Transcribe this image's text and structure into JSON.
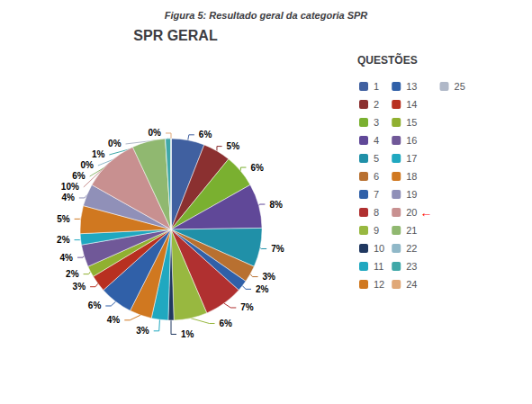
{
  "chart_data": {
    "type": "pie",
    "title": "SPR GERAL",
    "figure_title": "Figura 5: Resultado geral da categoria SPR",
    "legend_title": "QUESTÕES",
    "categories": [
      "1",
      "2",
      "3",
      "4",
      "5",
      "6",
      "7",
      "8",
      "9",
      "10",
      "11",
      "12",
      "13",
      "14",
      "15",
      "16",
      "17",
      "18",
      "19",
      "20",
      "21",
      "22",
      "23",
      "24",
      "25"
    ],
    "values": [
      6,
      5,
      6,
      8,
      7,
      3,
      2,
      7,
      6,
      1,
      3,
      4,
      6,
      3,
      2,
      4,
      2,
      5,
      4,
      10,
      6,
      0,
      1,
      0,
      0
    ],
    "value_labels": [
      "6%",
      "5%",
      "6%",
      "8%",
      "7%",
      "3%",
      "2%",
      "7%",
      "6%",
      "1%",
      "3%",
      "4%",
      "6%",
      "3%",
      "2%",
      "4%",
      "2%",
      "5%",
      "4%",
      "10%",
      "6%",
      "0%",
      "1%",
      "0%",
      "0%"
    ],
    "colors": [
      "#4060A0",
      "#8B3030",
      "#7AB030",
      "#604898",
      "#2090A8",
      "#B87030",
      "#3060A8",
      "#B03030",
      "#98B840",
      "#203860",
      "#20A8C0",
      "#D07820",
      "#3060A8",
      "#B83020",
      "#90B030",
      "#705898",
      "#20A8C0",
      "#D07820",
      "#9090B8",
      "#C89090",
      "#90B870",
      "#90B8C8",
      "#40A8A8",
      "#E0A878",
      "#B0B8C8"
    ],
    "data_labels": true,
    "legend": "right",
    "annotations": [
      {
        "text": "←",
        "color": "red",
        "target": "20"
      }
    ]
  }
}
